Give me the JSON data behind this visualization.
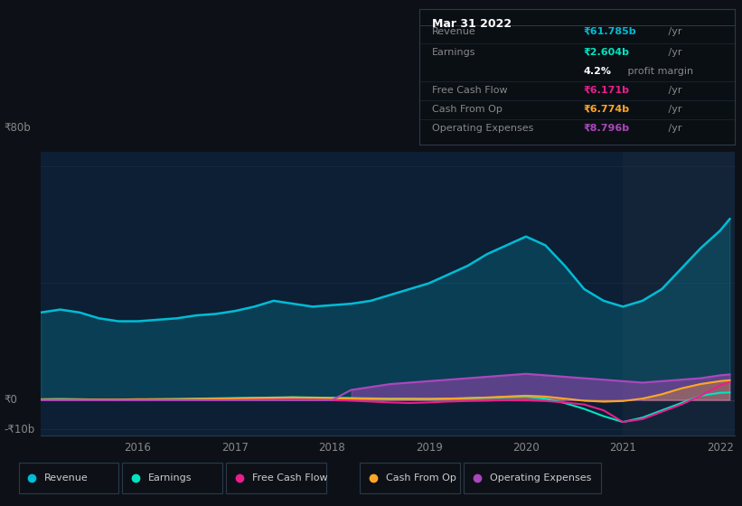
{
  "bg_color": "#0d1117",
  "plot_bg_color": "#0c1f35",
  "highlight_bg": "#132438",
  "title": "Mar 31 2022",
  "tooltip": {
    "Revenue": {
      "value": "₹61.785b",
      "color": "#00bcd4"
    },
    "Earnings": {
      "value": "₹2.604b",
      "color": "#00e5c0"
    },
    "profit_margin": "4.2%",
    "Free Cash Flow": {
      "value": "₹6.171b",
      "color": "#e91e8c"
    },
    "Cash From Op": {
      "value": "₹6.774b",
      "color": "#ffa726"
    },
    "Operating Expenses": {
      "value": "₹8.796b",
      "color": "#ab47bc"
    }
  },
  "ylabel_top": "₹80b",
  "ylabel_zero": "₹0",
  "ylabel_bottom": "-₹10b",
  "x_labels": [
    "2016",
    "2017",
    "2018",
    "2019",
    "2020",
    "2021",
    "2022"
  ],
  "x_tick_positions": [
    2016,
    2017,
    2018,
    2019,
    2020,
    2021,
    2022
  ],
  "years": [
    2015.0,
    2015.2,
    2015.4,
    2015.6,
    2015.8,
    2016.0,
    2016.2,
    2016.4,
    2016.6,
    2016.8,
    2017.0,
    2017.2,
    2017.4,
    2017.6,
    2017.8,
    2018.0,
    2018.2,
    2018.4,
    2018.6,
    2018.8,
    2019.0,
    2019.2,
    2019.4,
    2019.6,
    2019.8,
    2020.0,
    2020.2,
    2020.4,
    2020.6,
    2020.8,
    2021.0,
    2021.2,
    2021.4,
    2021.6,
    2021.8,
    2022.0,
    2022.1
  ],
  "revenue": [
    30,
    31,
    30,
    28,
    27,
    27,
    27.5,
    28,
    29,
    29.5,
    30.5,
    32,
    34,
    33,
    32,
    32.5,
    33,
    34,
    36,
    38,
    40,
    43,
    46,
    50,
    53,
    56,
    53,
    46,
    38,
    34,
    32,
    34,
    38,
    45,
    52,
    58,
    62
  ],
  "earnings": [
    0.3,
    0.4,
    0.3,
    0.2,
    0.1,
    0.2,
    0.3,
    0.4,
    0.5,
    0.6,
    0.7,
    0.8,
    0.9,
    1.0,
    0.9,
    0.8,
    0.7,
    0.6,
    0.5,
    0.5,
    0.4,
    0.5,
    0.6,
    0.8,
    1.0,
    1.2,
    0.5,
    -1.0,
    -3.0,
    -5.5,
    -7.5,
    -6.0,
    -3.5,
    -1.0,
    1.5,
    2.5,
    2.6
  ],
  "free_cash_flow": [
    0.1,
    0.1,
    0.1,
    0.0,
    0.0,
    0.1,
    0.1,
    0.1,
    0.1,
    0.1,
    0.2,
    0.3,
    0.3,
    0.2,
    0.1,
    0.0,
    -0.2,
    -0.5,
    -0.8,
    -1.0,
    -0.8,
    -0.5,
    -0.3,
    -0.2,
    0.0,
    -0.1,
    -0.3,
    -0.8,
    -1.5,
    -3.5,
    -7.5,
    -6.5,
    -4.0,
    -1.5,
    1.5,
    5.0,
    6.2
  ],
  "cash_from_op": [
    0.2,
    0.2,
    0.2,
    0.2,
    0.2,
    0.3,
    0.3,
    0.3,
    0.4,
    0.5,
    0.6,
    0.7,
    0.8,
    0.9,
    0.8,
    0.7,
    0.6,
    0.5,
    0.4,
    0.4,
    0.4,
    0.5,
    0.7,
    0.9,
    1.2,
    1.5,
    1.2,
    0.5,
    -0.2,
    -0.5,
    -0.3,
    0.5,
    2.0,
    4.0,
    5.5,
    6.5,
    6.8
  ],
  "operating_expenses": [
    0.0,
    0.0,
    0.0,
    0.0,
    0.0,
    0.0,
    0.0,
    0.0,
    0.0,
    0.0,
    0.0,
    0.0,
    0.0,
    0.0,
    0.0,
    0.0,
    3.5,
    4.5,
    5.5,
    6.0,
    6.5,
    7.0,
    7.5,
    8.0,
    8.5,
    9.0,
    8.5,
    8.0,
    7.5,
    7.0,
    6.5,
    6.0,
    6.5,
    7.0,
    7.5,
    8.5,
    8.8
  ],
  "colors": {
    "revenue": "#00bcd4",
    "earnings": "#00e5c0",
    "free_cash_flow": "#e91e8c",
    "cash_from_op": "#ffa726",
    "operating_expenses": "#ab47bc"
  },
  "highlight_x_start": 2021.0,
  "highlight_x_end": 2022.15,
  "ylim": [
    -12,
    85
  ],
  "xlim": [
    2015.0,
    2022.15
  ],
  "grid_lines": [
    80,
    40,
    0,
    -10
  ],
  "zero_line_y": 0,
  "y80b_y": 80,
  "y_neg10b_y": -10
}
